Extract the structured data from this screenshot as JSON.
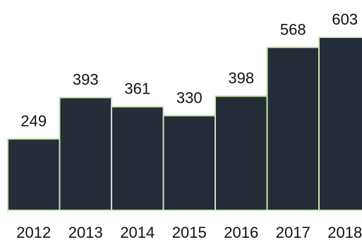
{
  "chart_data": {
    "type": "bar",
    "categories": [
      "2012",
      "2013",
      "2014",
      "2015",
      "2016",
      "2017",
      "2018"
    ],
    "values": [
      249,
      393,
      361,
      330,
      398,
      568,
      603
    ],
    "title": "",
    "xlabel": "",
    "ylabel": "",
    "ylim": [
      0,
      603
    ],
    "grid": false,
    "legend": "none",
    "data_labels": true,
    "colors": {
      "bar_fill": "#262c38",
      "bar_stroke": "#c8e6b4",
      "text": "#111111"
    }
  }
}
